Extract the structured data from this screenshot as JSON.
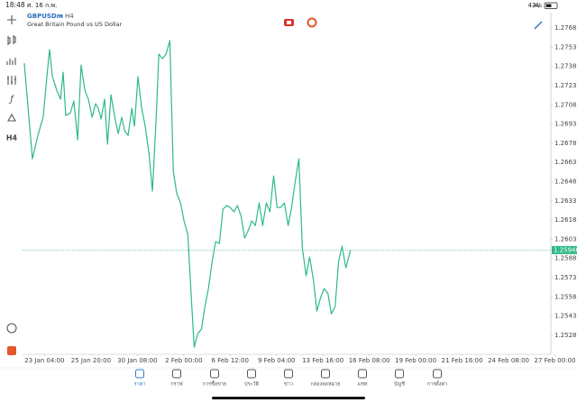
{
  "status_bar": {
    "time": "18:48",
    "date": "ศ. 16 ก.พ.",
    "battery": "43%"
  },
  "header": {
    "symbol": "GBPUSDm",
    "timeframe": "H4",
    "description": "Great Britain Pound vs US Dollar"
  },
  "toolbar": {
    "timeframe": "H4"
  },
  "chart_data": {
    "type": "line",
    "x": [
      0,
      2.8,
      4.7,
      6.5,
      7.8,
      8.7,
      9.7,
      11.2,
      12.5,
      13.4,
      14.3,
      15.9,
      17.1,
      18.4,
      19.6,
      20.9,
      22.1,
      23.4,
      24.6,
      25.5,
      26.5,
      27.7,
      28.7,
      29.9,
      31.2,
      32.4,
      33.6,
      34.6,
      35.8,
      37.1,
      38.0,
      39.2,
      40.5,
      41.7,
      43.0,
      44.2,
      45.5,
      46.4,
      47.7,
      48.9,
      50.2,
      51.4,
      52.6,
      53.9,
      55.1,
      56.4,
      57.6,
      58.6,
      59.8,
      61.1,
      62.3,
      63.5,
      64.8,
      66.0,
      67.3,
      68.5,
      69.8,
      71.0,
      72.3,
      73.5,
      74.8,
      76.0,
      77.3,
      78.5,
      79.7,
      81.0,
      82.2,
      83.5,
      84.7,
      86.0,
      87.2,
      88.5,
      89.7,
      91.0,
      92.2,
      93.5,
      94.7,
      95.9,
      97.2,
      98.4,
      99.7,
      100.9,
      102.2,
      103.4,
      104.7,
      105.9,
      107.2,
      108.4,
      109.6,
      110.9,
      112.5
    ],
    "series": [
      {
        "name": "GBPUSDm",
        "color": "#2fb985",
        "values": [
          1.27405,
          1.26659,
          1.26842,
          1.26983,
          1.273,
          1.27511,
          1.273,
          1.27194,
          1.27124,
          1.27335,
          1.26997,
          1.27018,
          1.2711,
          1.26807,
          1.27391,
          1.27194,
          1.27124,
          1.26983,
          1.27089,
          1.27053,
          1.26969,
          1.27124,
          1.26772,
          1.27159,
          1.26983,
          1.26856,
          1.26983,
          1.26877,
          1.26842,
          1.27053,
          1.26913,
          1.273,
          1.27053,
          1.26913,
          1.26701,
          1.26406,
          1.26983,
          1.27476,
          1.27441,
          1.27476,
          1.27581,
          1.26561,
          1.26385,
          1.26314,
          1.26173,
          1.26068,
          1.25575,
          1.25188,
          1.25293,
          1.25329,
          1.25505,
          1.25645,
          1.25857,
          1.26012,
          1.25997,
          1.26265,
          1.26293,
          1.26279,
          1.26244,
          1.26293,
          1.26209,
          1.2604,
          1.26103,
          1.26173,
          1.26138,
          1.26314,
          1.26138,
          1.26314,
          1.26244,
          1.26525,
          1.26279,
          1.26279,
          1.26314,
          1.26138,
          1.26279,
          1.2649,
          1.26659,
          1.25962,
          1.25744,
          1.25892,
          1.25716,
          1.25469,
          1.25575,
          1.25645,
          1.2561,
          1.25448,
          1.25505,
          1.25857,
          1.25976,
          1.25807,
          1.25946
        ]
      }
    ],
    "xlim": [
      -0.6,
      181.6
    ],
    "xticks": [
      {
        "value": 7,
        "label": "23 Jan 04:00"
      },
      {
        "value": 23,
        "label": "25 Jan 20:00"
      },
      {
        "value": 39,
        "label": "30 Jan 08:00"
      },
      {
        "value": 55,
        "label": "2 Feb 00:00"
      },
      {
        "value": 71,
        "label": "6 Feb 12:00"
      },
      {
        "value": 87,
        "label": "9 Feb 04:00"
      },
      {
        "value": 103,
        "label": "13 Feb 16:00"
      },
      {
        "value": 119,
        "label": "16 Feb 08:00"
      },
      {
        "value": 135,
        "label": "19 Feb 00:00"
      },
      {
        "value": 151,
        "label": "21 Feb 16:00"
      },
      {
        "value": 167,
        "label": "24 Feb 08:00"
      },
      {
        "value": 183,
        "label": "27 Feb 00:00"
      }
    ],
    "ylim": [
      1.25132,
      1.278
    ],
    "yticks": [
      {
        "value": 1.2768,
        "label": "1.27680"
      },
      {
        "value": 1.2753,
        "label": "1.27530"
      },
      {
        "value": 1.2738,
        "label": "1.27380"
      },
      {
        "value": 1.2723,
        "label": "1.27230"
      },
      {
        "value": 1.2708,
        "label": "1.27080"
      },
      {
        "value": 1.2693,
        "label": "1.26930"
      },
      {
        "value": 1.2678,
        "label": "1.26780"
      },
      {
        "value": 1.2663,
        "label": "1.26630"
      },
      {
        "value": 1.2648,
        "label": "1.26480"
      },
      {
        "value": 1.2633,
        "label": "1.26330"
      },
      {
        "value": 1.2618,
        "label": "1.26180"
      },
      {
        "value": 1.2603,
        "label": "1.26030"
      },
      {
        "value": 1.2588,
        "label": "1.25880"
      },
      {
        "value": 1.2573,
        "label": "1.25730"
      },
      {
        "value": 1.2558,
        "label": "1.25580"
      },
      {
        "value": 1.2543,
        "label": "1.25430"
      },
      {
        "value": 1.2528,
        "label": "1.25280"
      }
    ],
    "current_price": 1.25946,
    "grid": false
  },
  "bottom_nav": [
    "ราคา",
    "กราฟ",
    "การซื้อขาย",
    "ประวัติ",
    "ข่าว",
    "กล่องจดหมาย",
    "แชท",
    "บัญชี",
    "การตั้งค่า"
  ]
}
